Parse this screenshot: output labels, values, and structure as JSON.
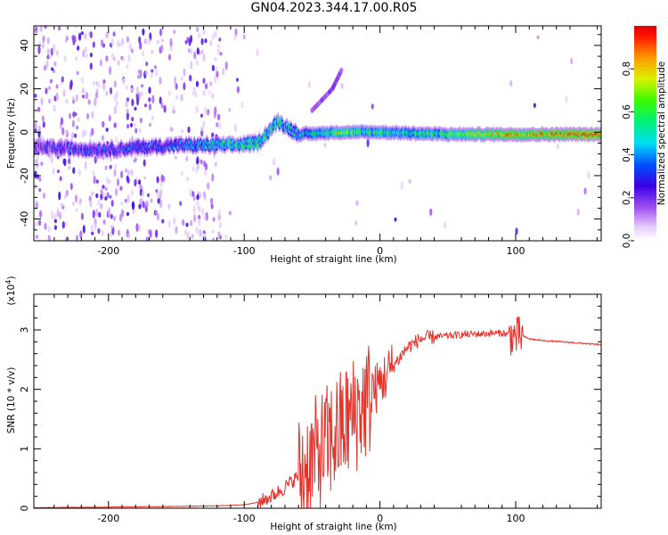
{
  "title": "GN04.2023.344.17.00.R05",
  "chart_data": [
    {
      "type": "heatmap",
      "xlabel": "Height of straight line (km)",
      "ylabel": "Frequency (Hz)",
      "xlim": [
        -255,
        163
      ],
      "ylim": [
        -50,
        49
      ],
      "xticks": [
        -200,
        -100,
        0,
        100
      ],
      "yticks": [
        -40,
        -20,
        0,
        20,
        40
      ],
      "colorbar": {
        "label": "Normalized spectral amplitude",
        "range": [
          0,
          1
        ],
        "ticks": [
          "0.0",
          "0.2",
          "0.4",
          "0.6",
          "0.8"
        ],
        "tick_values": [
          0,
          0.2,
          0.4,
          0.6,
          0.8
        ],
        "colormap": "rainbow"
      },
      "ridge": {
        "description_points": [
          {
            "x": -255,
            "f": -7,
            "amp": 0.25
          },
          {
            "x": -200,
            "f": -8,
            "amp": 0.3
          },
          {
            "x": -150,
            "f": -6,
            "amp": 0.35
          },
          {
            "x": -110,
            "f": -6,
            "amp": 0.55
          },
          {
            "x": -90,
            "f": -5,
            "amp": 0.55
          },
          {
            "x": -75,
            "f": 5,
            "amp": 0.55
          },
          {
            "x": -60,
            "f": -1,
            "amp": 0.45
          },
          {
            "x": -30,
            "f": 0,
            "amp": 0.65
          },
          {
            "x": 0,
            "f": 0,
            "amp": 0.55
          },
          {
            "x": 50,
            "f": -1,
            "amp": 0.6
          },
          {
            "x": 90,
            "f": -1,
            "amp": 0.85
          },
          {
            "x": 130,
            "f": -1,
            "amp": 0.9
          },
          {
            "x": 163,
            "f": -1,
            "amp": 0.95
          }
        ],
        "branch": [
          {
            "x": -50,
            "f": 10
          },
          {
            "x": -35,
            "f": 20
          },
          {
            "x": -28,
            "f": 29
          }
        ]
      }
    },
    {
      "type": "line",
      "xlabel": "Height of straight line (km)",
      "ylabel": "SNR (10 * v/v)",
      "y_multiplier_label": "(x10",
      "y_multiplier_exp": "4",
      "y_multiplier_close": ")",
      "xlim": [
        -255,
        163
      ],
      "ylim": [
        0,
        3.6
      ],
      "xticks": [
        -200,
        -100,
        0,
        100
      ],
      "yticks": [
        0,
        1,
        2,
        3
      ],
      "color": "#e8312b",
      "series": [
        {
          "x": [
            -255,
            -200,
            -150,
            -120,
            -100,
            -90,
            -80,
            -70,
            -60,
            -50,
            -40,
            -30,
            -20,
            -10,
            0,
            10,
            20,
            30,
            40,
            50,
            60,
            70,
            80,
            90,
            95,
            100,
            105,
            110,
            120,
            140,
            163
          ],
          "values": [
            0.01,
            0.02,
            0.03,
            0.04,
            0.06,
            0.1,
            0.2,
            0.35,
            0.55,
            0.8,
            1.05,
            1.3,
            1.55,
            1.8,
            2.1,
            2.4,
            2.7,
            2.85,
            2.88,
            2.9,
            2.92,
            2.93,
            2.94,
            2.95,
            2.92,
            2.88,
            2.9,
            2.85,
            2.82,
            2.79,
            2.75
          ]
        }
      ]
    }
  ]
}
